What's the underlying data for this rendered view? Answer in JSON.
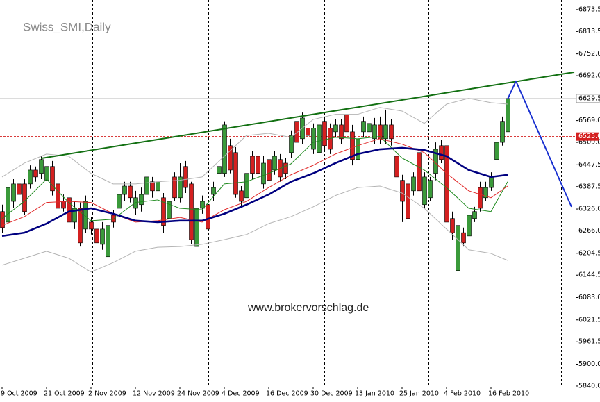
{
  "chart_data": {
    "type": "candlestick",
    "title": "Swiss_SMI,Daily",
    "watermark": "www.brokervorschlag.de",
    "bull_color": "#3a9a3a",
    "bear_color": "#d42020",
    "categories": [
      "9 Oct 2009",
      null,
      null,
      null,
      null,
      null,
      null,
      null,
      "21 Oct 2009",
      null,
      null,
      null,
      null,
      null,
      null,
      null,
      "2 Nov 2009",
      null,
      null,
      null,
      null,
      null,
      null,
      null,
      "12 Nov 2009",
      null,
      null,
      null,
      null,
      null,
      null,
      null,
      "24 Nov 2009",
      null,
      null,
      null,
      null,
      null,
      null,
      null,
      "4 Dec 2009",
      null,
      null,
      null,
      null,
      null,
      null,
      null,
      "16 Dec 2009",
      null,
      null,
      null,
      null,
      null,
      null,
      null,
      "30 Dec 2009",
      null,
      null,
      null,
      null,
      null,
      null,
      null,
      "13 Jan 2010",
      null,
      null,
      null,
      null,
      null,
      null,
      null,
      "25 Jan 2010",
      null,
      null,
      null,
      null,
      null,
      null,
      null,
      "4 Feb 2010",
      null,
      null,
      null,
      null,
      null,
      null,
      null,
      "16 Feb 2010",
      null,
      null,
      null
    ],
    "open": [
      6319,
      6290,
      6347,
      6395,
      6395,
      6395,
      6433,
      6424,
      6405,
      6443,
      6395,
      6347,
      6357,
      6290,
      6328,
      6271,
      6290,
      6271,
      6229,
      6195,
      6309,
      6328,
      6366,
      6389,
      6328,
      6338,
      6366,
      6401,
      6376,
      6357,
      6300,
      6414,
      6357,
      6443,
      6395,
      6223,
      6328,
      6338,
      6366,
      6424,
      6424,
      6500,
      6481,
      6376,
      6357,
      6471,
      6471,
      6395,
      6462,
      6433,
      6462,
      6452,
      6481,
      6567,
      6519,
      6548,
      6490,
      6481,
      6567,
      6548,
      6538,
      6557,
      6586,
      6538,
      6462,
      6538,
      6538,
      6519,
      6557,
      6519,
      6557,
      6471,
      6405,
      6395,
      6376,
      6481,
      6338,
      6357,
      6424,
      6500,
      6500,
      6300,
      6157,
      6261,
      6252,
      6300,
      6385,
      6357,
      6385,
      6462,
      6509,
      6538
    ],
    "high": [
      6338,
      6401,
      6408,
      6414,
      6408,
      6446,
      6443,
      6471,
      6466,
      6458,
      6408,
      6366,
      6370,
      6347,
      6344,
      6363,
      6305,
      6286,
      6290,
      6313,
      6323,
      6382,
      6401,
      6401,
      6376,
      6385,
      6427,
      6414,
      6414,
      6370,
      6363,
      6427,
      6452,
      6458,
      6401,
      6347,
      6363,
      6351,
      6401,
      6458,
      6567,
      6519,
      6496,
      6389,
      6439,
      6485,
      6485,
      6471,
      6477,
      6485,
      6477,
      6466,
      6542,
      6586,
      6591,
      6567,
      6561,
      6572,
      6580,
      6561,
      6572,
      6572,
      6599,
      6557,
      6534,
      6580,
      6576,
      6576,
      6580,
      6599,
      6572,
      6485,
      6420,
      6408,
      6427,
      6496,
      6427,
      6414,
      6509,
      6515,
      6509,
      6319,
      6294,
      6275,
      6324,
      6332,
      6401,
      6401,
      6427,
      6523,
      6580,
      6633
    ],
    "low": [
      6261,
      6281,
      6328,
      6357,
      6309,
      6382,
      6401,
      6408,
      6395,
      6363,
      6319,
      6319,
      6271,
      6271,
      6223,
      6261,
      6256,
      6141,
      6214,
      6185,
      6275,
      6313,
      6347,
      6344,
      6309,
      6319,
      6351,
      6357,
      6363,
      6261,
      6290,
      6347,
      6344,
      6370,
      6229,
      6172,
      6313,
      6261,
      6347,
      6408,
      6414,
      6424,
      6357,
      6332,
      6344,
      6408,
      6408,
      6382,
      6389,
      6420,
      6401,
      6408,
      6466,
      6496,
      6504,
      6515,
      6477,
      6466,
      6485,
      6477,
      6523,
      6504,
      6523,
      6446,
      6433,
      6523,
      6523,
      6504,
      6504,
      6504,
      6500,
      6401,
      6290,
      6290,
      6363,
      6363,
      6328,
      6347,
      6405,
      6452,
      6281,
      6242,
      6151,
      6223,
      6242,
      6290,
      6319,
      6347,
      6376,
      6452,
      6500,
      6519
    ],
    "close": [
      6275,
      6385,
      6395,
      6366,
      6319,
      6433,
      6414,
      6462,
      6443,
      6376,
      6328,
      6328,
      6290,
      6328,
      6233,
      6347,
      6271,
      6233,
      6271,
      6281,
      6290,
      6366,
      6389,
      6357,
      6357,
      6366,
      6414,
      6376,
      6401,
      6281,
      6347,
      6357,
      6414,
      6385,
      6242,
      6328,
      6347,
      6271,
      6385,
      6443,
      6557,
      6433,
      6366,
      6347,
      6424,
      6424,
      6424,
      6452,
      6405,
      6471,
      6414,
      6424,
      6528,
      6509,
      6576,
      6528,
      6548,
      6557,
      6500,
      6490,
      6557,
      6519,
      6538,
      6462,
      6519,
      6567,
      6561,
      6557,
      6519,
      6557,
      6519,
      6414,
      6347,
      6300,
      6414,
      6376,
      6414,
      6405,
      6490,
      6462,
      6290,
      6261,
      6281,
      6233,
      6309,
      6319,
      6328,
      6385,
      6414,
      6509,
      6567,
      6629.5
    ],
    "indicators": [
      {
        "color": "#b4b4b4",
        "x": [
          0,
          4,
          8,
          12,
          16,
          20,
          24,
          28,
          32,
          36,
          40,
          44,
          48,
          52,
          56,
          60,
          64,
          68,
          72,
          76,
          80,
          84,
          88,
          91
        ],
        "values": [
          6414,
          6452,
          6477,
          6471,
          6424,
          6395,
          6395,
          6401,
          6405,
          6414,
          6471,
          6528,
          6534,
          6523,
          6572,
          6586,
          6586,
          6605,
          6595,
          6561,
          6614,
          6630,
          6618,
          6614
        ]
      },
      {
        "color": "#b4b4b4",
        "x": [
          0,
          4,
          8,
          12,
          16,
          20,
          24,
          28,
          32,
          36,
          40,
          44,
          48,
          52,
          56,
          60,
          64,
          68,
          72,
          76,
          80,
          84,
          88,
          91
        ],
        "values": [
          6172,
          6191,
          6210,
          6191,
          6153,
          6179,
          6210,
          6221,
          6223,
          6229,
          6242,
          6256,
          6286,
          6305,
          6332,
          6363,
          6385,
          6389,
          6370,
          6328,
          6271,
          6214,
          6204,
          6185
        ]
      },
      {
        "color": "#1e8a1e",
        "x": [
          0,
          4,
          8,
          12,
          16,
          20,
          24,
          28,
          32,
          36,
          40,
          44,
          48,
          52,
          56,
          60,
          64,
          68,
          72,
          76,
          80,
          84,
          88,
          91
        ],
        "values": [
          6300,
          6347,
          6408,
          6344,
          6294,
          6298,
          6344,
          6351,
          6328,
          6324,
          6395,
          6401,
          6424,
          6450,
          6509,
          6523,
          6519,
          6525,
          6466,
          6433,
          6385,
          6328,
          6319,
          6401
        ]
      },
      {
        "color": "#e02828",
        "x": [
          0,
          4,
          8,
          12,
          16,
          20,
          24,
          28,
          32,
          36,
          40,
          44,
          48,
          52,
          56,
          60,
          64,
          68,
          72,
          76,
          80,
          84,
          88,
          91
        ],
        "values": [
          6281,
          6305,
          6344,
          6347,
          6344,
          6313,
          6290,
          6294,
          6303,
          6290,
          6324,
          6347,
          6385,
          6420,
          6446,
          6477,
          6500,
          6519,
          6504,
          6481,
          6424,
          6376,
          6357,
          6389
        ]
      },
      {
        "color": "#000080",
        "weight": "bold",
        "x": [
          0,
          4,
          8,
          12,
          16,
          20,
          24,
          28,
          32,
          36,
          40,
          44,
          48,
          52,
          56,
          60,
          64,
          68,
          72,
          76,
          80,
          84,
          88,
          91
        ],
        "values": [
          6252,
          6261,
          6286,
          6319,
          6328,
          6313,
          6294,
          6290,
          6294,
          6294,
          6313,
          6338,
          6366,
          6401,
          6424,
          6452,
          6477,
          6490,
          6494,
          6488,
          6471,
          6433,
          6414,
          6420
        ]
      }
    ],
    "trendlines": [
      {
        "color": "#127012",
        "x": [
          7,
          103
        ],
        "values": [
          6465,
          6702
        ]
      },
      {
        "color": "#1830d0",
        "x": [
          91,
          92.5,
          102.5
        ],
        "values": [
          6628,
          6677,
          6332
        ]
      }
    ],
    "price_line": {
      "value": 6525,
      "label": "6525.0",
      "color": "#d42020"
    },
    "ylim": [
      5838,
      6900
    ],
    "yticks": [
      {
        "value": 5840,
        "label": "5840.0"
      },
      {
        "value": 5900,
        "label": "5900.0"
      },
      5961.5,
      6021.5,
      {
        "value": 6083,
        "label": "6083.0"
      },
      6144.5,
      6204.5,
      {
        "value": 6266,
        "label": "6266.0"
      },
      {
        "value": 6326,
        "label": "6326.0"
      },
      6387.5,
      6447.5,
      {
        "value": 6509,
        "label": "6509.0"
      },
      {
        "value": 6569,
        "label": "6569.0"
      },
      {
        "value": 6692,
        "label": "6692.0"
      },
      {
        "value": 6752,
        "label": "6752.0"
      },
      6813.5,
      6873.5
    ],
    "grid": false
  }
}
